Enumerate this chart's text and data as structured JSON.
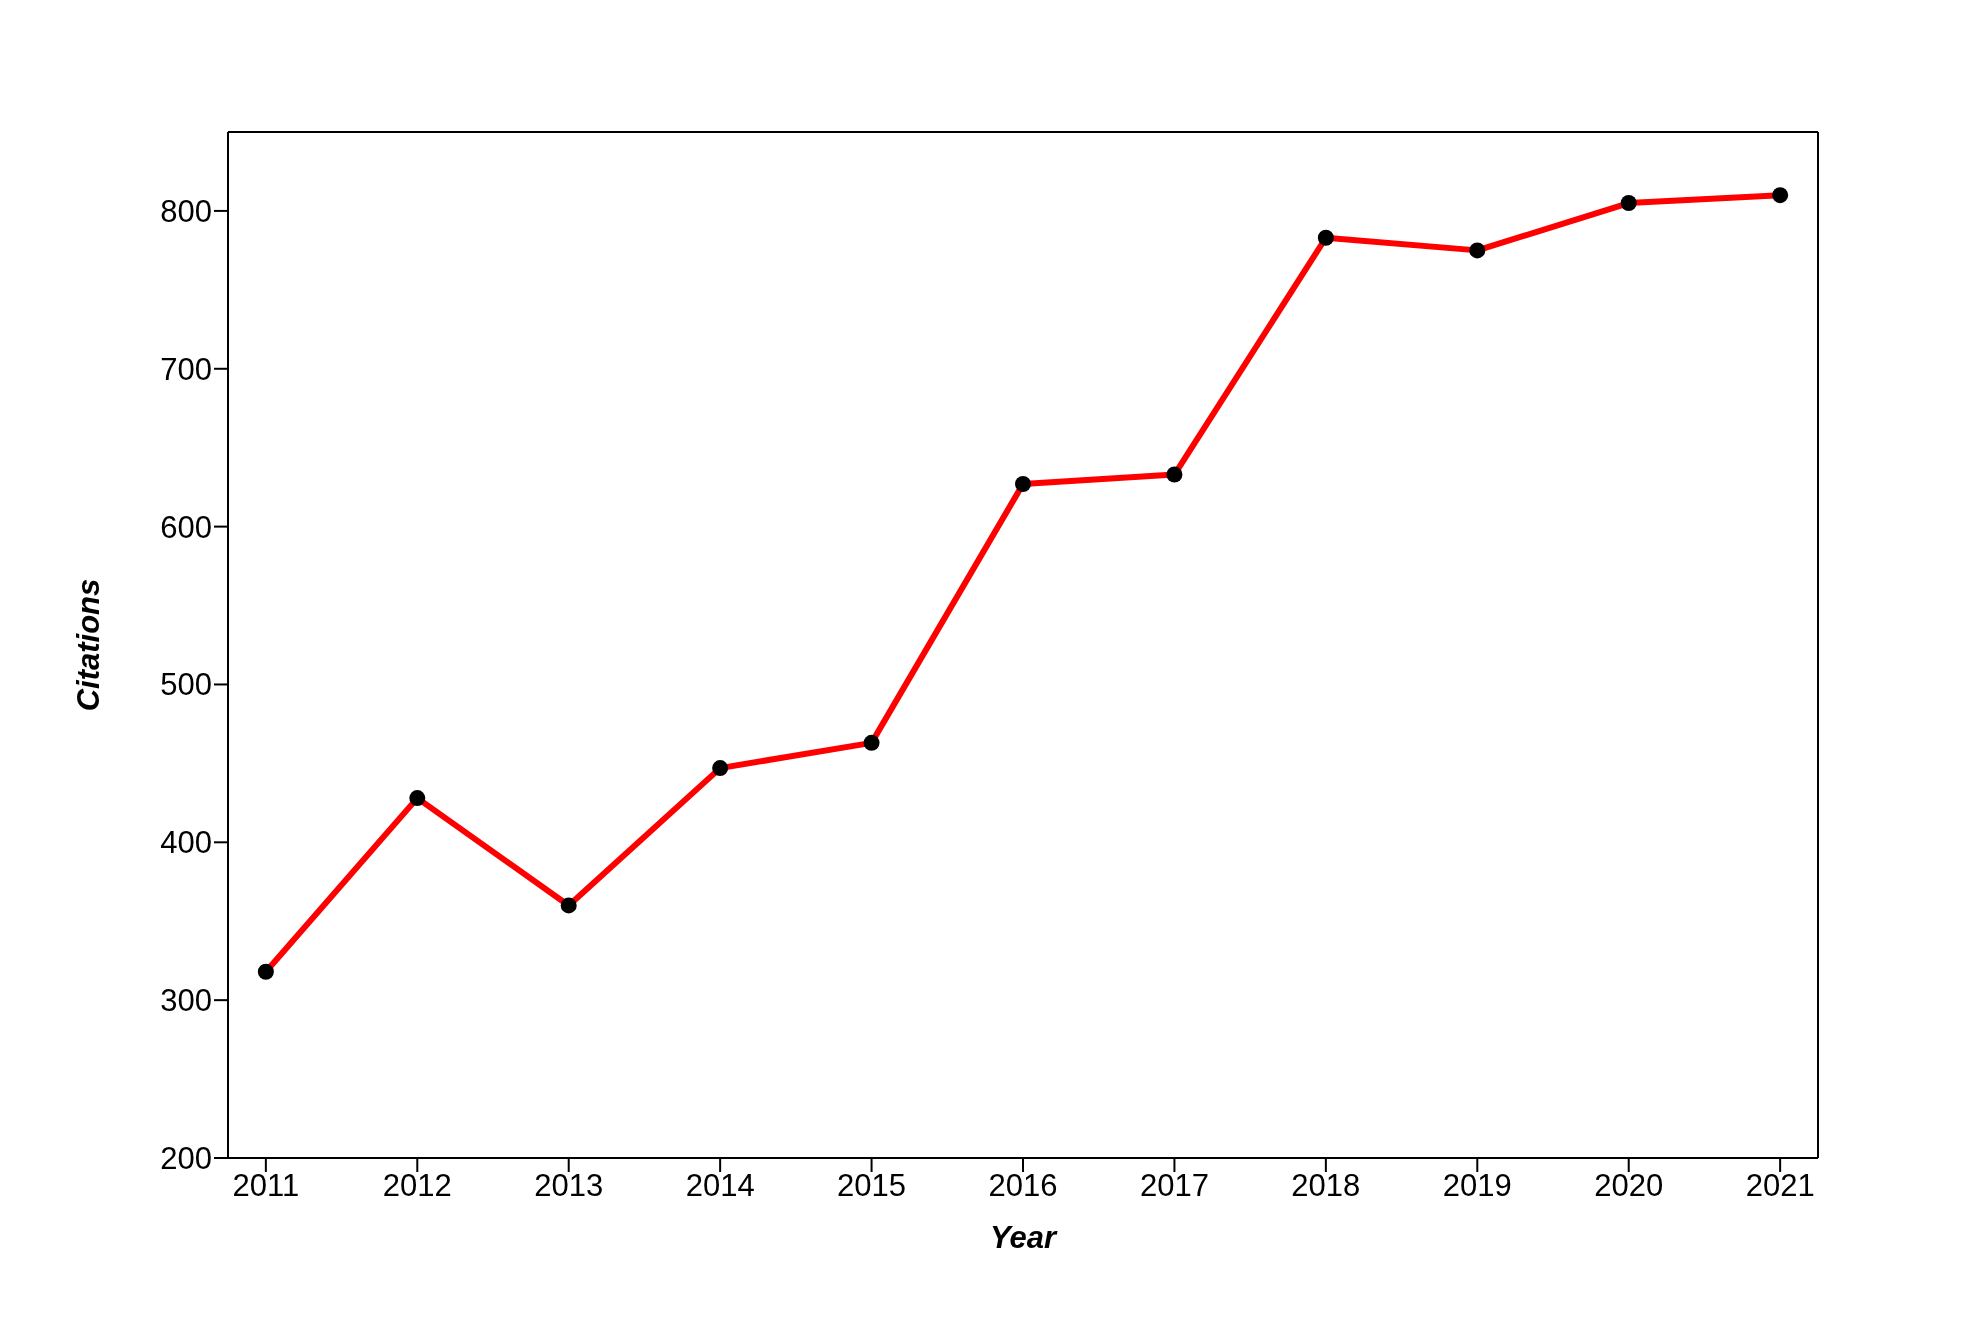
{
  "chart_data": {
    "type": "line",
    "xlabel": "Year",
    "ylabel": "Citations",
    "x": [
      2011,
      2012,
      2013,
      2014,
      2015,
      2016,
      2017,
      2018,
      2019,
      2020,
      2021
    ],
    "series": [
      {
        "color": "#ff0000",
        "values": [
          318,
          428,
          360,
          447,
          463,
          627,
          633,
          783,
          775,
          805,
          810
        ]
      }
    ],
    "xlim": [
      2010.75,
      2021.25
    ],
    "xticks": [
      2011,
      2012,
      2013,
      2014,
      2015,
      2016,
      2017,
      2018,
      2019,
      2020,
      2021
    ],
    "ylim": [
      200,
      850
    ],
    "yticks": [
      200,
      300,
      400,
      500,
      600,
      700,
      800
    ],
    "grid": false,
    "legend": false,
    "marker": "circle",
    "line_style": "solid"
  }
}
